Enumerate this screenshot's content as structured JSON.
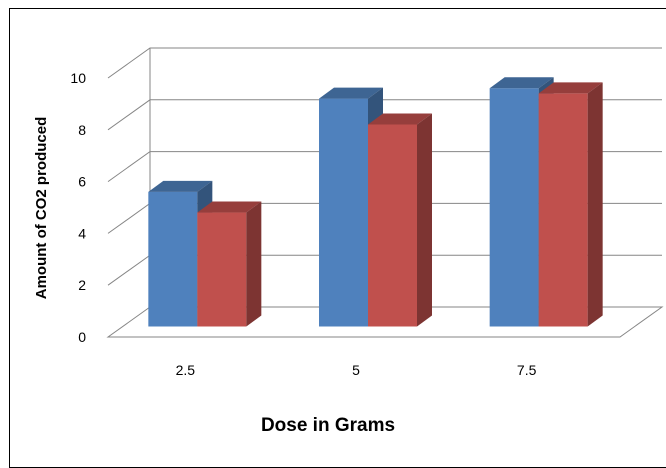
{
  "chart_data": {
    "type": "bar",
    "title": "",
    "xlabel": "Dose in Grams",
    "ylabel": "Amount of CO2 produced",
    "categories": [
      "2.5",
      "5",
      "7.5"
    ],
    "yticks": [
      "0",
      "2",
      "4",
      "6",
      "8",
      "10"
    ],
    "ylim": [
      0,
      10
    ],
    "grid": true,
    "legend": "none",
    "style": "3d-clustered-column",
    "series": [
      {
        "values": [
          5.2,
          8.8,
          9.2
        ],
        "color": "#4F81BD"
      },
      {
        "values": [
          4.4,
          7.8,
          9.0
        ],
        "color": "#C0504D"
      }
    ]
  }
}
